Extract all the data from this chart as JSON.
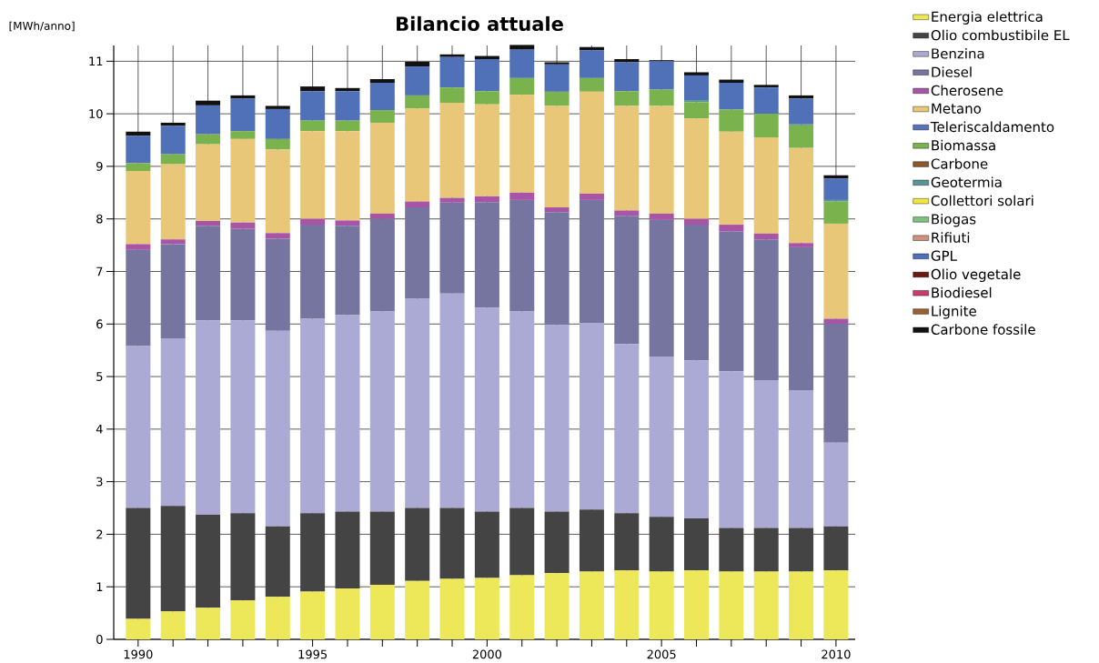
{
  "chart_data": {
    "type": "bar",
    "stacked": true,
    "title": "Bilancio attuale",
    "ylabel": "[MWh/anno]",
    "x": [
      1990,
      1991,
      1992,
      1993,
      1994,
      1995,
      1996,
      1997,
      1998,
      1999,
      2000,
      2001,
      2002,
      2003,
      2004,
      2005,
      2006,
      2007,
      2008,
      2009,
      2010
    ],
    "xlim": [
      1989.3,
      2010.55
    ],
    "xticks": [
      1990,
      {
        "value": 1991,
        "label": null
      },
      {
        "value": 1992,
        "label": null
      },
      {
        "value": 1993,
        "label": null
      },
      {
        "value": 1994,
        "label": null
      },
      1995,
      {
        "value": 1996,
        "label": null
      },
      {
        "value": 1997,
        "label": null
      },
      {
        "value": 1998,
        "label": null
      },
      {
        "value": 1999,
        "label": null
      },
      2000,
      {
        "value": 2001,
        "label": null
      },
      {
        "value": 2002,
        "label": null
      },
      {
        "value": 2003,
        "label": null
      },
      {
        "value": 2004,
        "label": null
      },
      2005,
      {
        "value": 2006,
        "label": null
      },
      {
        "value": 2007,
        "label": null
      },
      {
        "value": 2008,
        "label": null
      },
      {
        "value": 2009,
        "label": null
      },
      2010
    ],
    "ylim": [
      0,
      11.3
    ],
    "yticks": [
      0,
      1,
      2,
      3,
      4,
      5,
      6,
      7,
      8,
      9,
      10,
      11
    ],
    "grid": true,
    "legend": "right",
    "series": [
      {
        "name": "Energia elettrica",
        "color": "#ede85a",
        "values": [
          0.39,
          0.53,
          0.6,
          0.74,
          0.81,
          0.91,
          0.97,
          1.04,
          1.11,
          1.15,
          1.17,
          1.22,
          1.26,
          1.29,
          1.31,
          1.29,
          1.31,
          1.29,
          1.29,
          1.29,
          1.31
        ]
      },
      {
        "name": "Olio combustibile EL",
        "color": "#444444",
        "values": [
          2.11,
          2.01,
          1.77,
          1.66,
          1.34,
          1.49,
          1.46,
          1.39,
          1.39,
          1.35,
          1.26,
          1.28,
          1.17,
          1.18,
          1.09,
          1.04,
          0.99,
          0.83,
          0.83,
          0.83,
          0.84
        ]
      },
      {
        "name": "Benzina",
        "color": "#aaaad4",
        "values": [
          3.08,
          3.19,
          3.7,
          3.67,
          3.72,
          3.7,
          3.74,
          3.81,
          3.98,
          4.08,
          3.88,
          3.74,
          3.55,
          3.55,
          3.22,
          3.05,
          3.01,
          2.98,
          2.81,
          2.62,
          1.59
        ]
      },
      {
        "name": "Diesel",
        "color": "#75759f",
        "values": [
          1.83,
          1.79,
          1.8,
          1.74,
          1.75,
          1.79,
          1.7,
          1.76,
          1.74,
          1.73,
          2.01,
          2.12,
          2.15,
          2.34,
          2.44,
          2.6,
          2.58,
          2.66,
          2.68,
          2.72,
          2.26
        ]
      },
      {
        "name": "Cherosene",
        "color": "#a855a8",
        "values": [
          0.11,
          0.09,
          0.09,
          0.12,
          0.11,
          0.11,
          0.1,
          0.1,
          0.11,
          0.09,
          0.11,
          0.14,
          0.09,
          0.12,
          0.1,
          0.12,
          0.11,
          0.13,
          0.11,
          0.08,
          0.1
        ]
      },
      {
        "name": "Metano",
        "color": "#e8c878",
        "values": [
          1.39,
          1.43,
          1.46,
          1.59,
          1.59,
          1.67,
          1.7,
          1.73,
          1.77,
          1.81,
          1.75,
          1.86,
          1.93,
          1.94,
          1.99,
          2.05,
          1.91,
          1.77,
          1.83,
          1.81,
          1.81
        ]
      },
      {
        "name": "Teleriscaldamento",
        "color": "#5573b8",
        "values": [
          0,
          0,
          0,
          0,
          0,
          0,
          0,
          0,
          0,
          0,
          0,
          0,
          0,
          0,
          0,
          0,
          0,
          0,
          0,
          0,
          0
        ]
      },
      {
        "name": "Biomassa",
        "color": "#7ab34e",
        "values": [
          0.15,
          0.19,
          0.19,
          0.15,
          0.2,
          0.2,
          0.2,
          0.24,
          0.25,
          0.29,
          0.25,
          0.32,
          0.27,
          0.26,
          0.28,
          0.31,
          0.31,
          0.42,
          0.45,
          0.43,
          0.42
        ]
      },
      {
        "name": "Carbone",
        "color": "#8b5a2b",
        "values": [
          0,
          0,
          0,
          0,
          0,
          0,
          0,
          0,
          0,
          0,
          0,
          0,
          0,
          0,
          0,
          0,
          0,
          0,
          0,
          0,
          0
        ]
      },
      {
        "name": "Geotermia",
        "color": "#5a9494",
        "values": [
          0,
          0,
          0,
          0,
          0,
          0,
          0,
          0,
          0,
          0,
          0,
          0,
          0,
          0,
          0,
          0,
          0.04,
          0,
          0,
          0.03,
          0.03
        ]
      },
      {
        "name": "Collettori solari",
        "color": "#f0e840",
        "values": [
          0,
          0,
          0,
          0,
          0,
          0,
          0,
          0,
          0,
          0,
          0,
          0,
          0,
          0,
          0,
          0,
          0,
          0,
          0,
          0,
          0
        ]
      },
      {
        "name": "Biogas",
        "color": "#80c080",
        "values": [
          0,
          0,
          0,
          0,
          0,
          0,
          0,
          0,
          0,
          0,
          0,
          0,
          0,
          0,
          0,
          0,
          0,
          0,
          0,
          0,
          0
        ]
      },
      {
        "name": "Rifiuti",
        "color": "#d09080",
        "values": [
          0,
          0,
          0,
          0,
          0,
          0,
          0,
          0,
          0,
          0,
          0,
          0,
          0,
          0,
          0,
          0,
          0,
          0,
          0,
          0,
          0
        ]
      },
      {
        "name": "GPL",
        "color": "#5070b8",
        "values": [
          0.52,
          0.54,
          0.55,
          0.62,
          0.57,
          0.56,
          0.56,
          0.52,
          0.55,
          0.58,
          0.61,
          0.54,
          0.52,
          0.53,
          0.55,
          0.54,
          0.47,
          0.51,
          0.5,
          0.48,
          0.41
        ]
      },
      {
        "name": "Olio vegetale",
        "color": "#6b1a10",
        "values": [
          0,
          0,
          0,
          0,
          0,
          0,
          0,
          0,
          0,
          0,
          0,
          0,
          0,
          0,
          0,
          0,
          0,
          0,
          0,
          0,
          0
        ]
      },
      {
        "name": "Biodiesel",
        "color": "#c83c6c",
        "values": [
          0,
          0,
          0,
          0,
          0,
          0,
          0,
          0,
          0,
          0,
          0,
          0,
          0,
          0,
          0,
          0,
          0,
          0,
          0,
          0,
          0
        ]
      },
      {
        "name": "Lignite",
        "color": "#9a6030",
        "values": [
          0,
          0,
          0,
          0,
          0,
          0,
          0,
          0,
          0,
          0,
          0,
          0,
          0,
          0,
          0,
          0,
          0,
          0,
          0,
          0,
          0
        ]
      },
      {
        "name": "Carbone fossile",
        "color": "#111111",
        "values": [
          0.08,
          0.06,
          0.09,
          0.06,
          0.06,
          0.09,
          0.06,
          0.07,
          0.09,
          0.05,
          0.06,
          0.09,
          0.04,
          0.06,
          0.06,
          0.02,
          0.06,
          0.06,
          0.05,
          0.06,
          0.06
        ]
      }
    ]
  }
}
